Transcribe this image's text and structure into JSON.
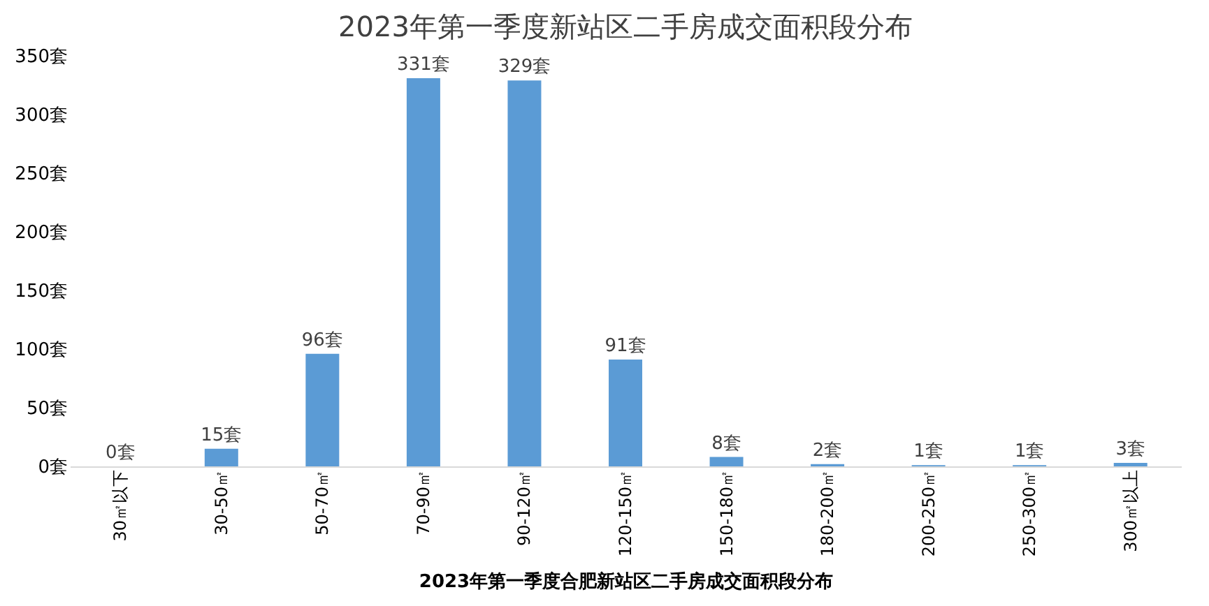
{
  "chart_data": {
    "type": "bar",
    "title": "2023年第一季度新站区二手房成交面积段分布",
    "xlabel": "2023年第一季度合肥新站区二手房成交面积段分布",
    "categories": [
      "30㎡以下",
      "30-50㎡",
      "50-70㎡",
      "70-90㎡",
      "90-120㎡",
      "120-150㎡",
      "150-180㎡",
      "180-200㎡",
      "200-250㎡",
      "250-300㎡",
      "300㎡以上"
    ],
    "values": [
      0,
      15,
      96,
      331,
      329,
      91,
      8,
      2,
      1,
      1,
      3
    ],
    "value_labels": [
      "0套",
      "15套",
      "96套",
      "331套",
      "329套",
      "91套",
      "8套",
      "2套",
      "1套",
      "1套",
      "3套"
    ],
    "color": "#5b9bd5",
    "ylim": [
      0,
      350
    ],
    "yticks": [
      {
        "value": 0,
        "label": "0套"
      },
      {
        "value": 50,
        "label": "50套"
      },
      {
        "value": 100,
        "label": "100套"
      },
      {
        "value": 150,
        "label": "150套"
      },
      {
        "value": 200,
        "label": "200套"
      },
      {
        "value": 250,
        "label": "250套"
      },
      {
        "value": 300,
        "label": "300套"
      },
      {
        "value": 350,
        "label": "350套"
      }
    ],
    "grid": false
  }
}
